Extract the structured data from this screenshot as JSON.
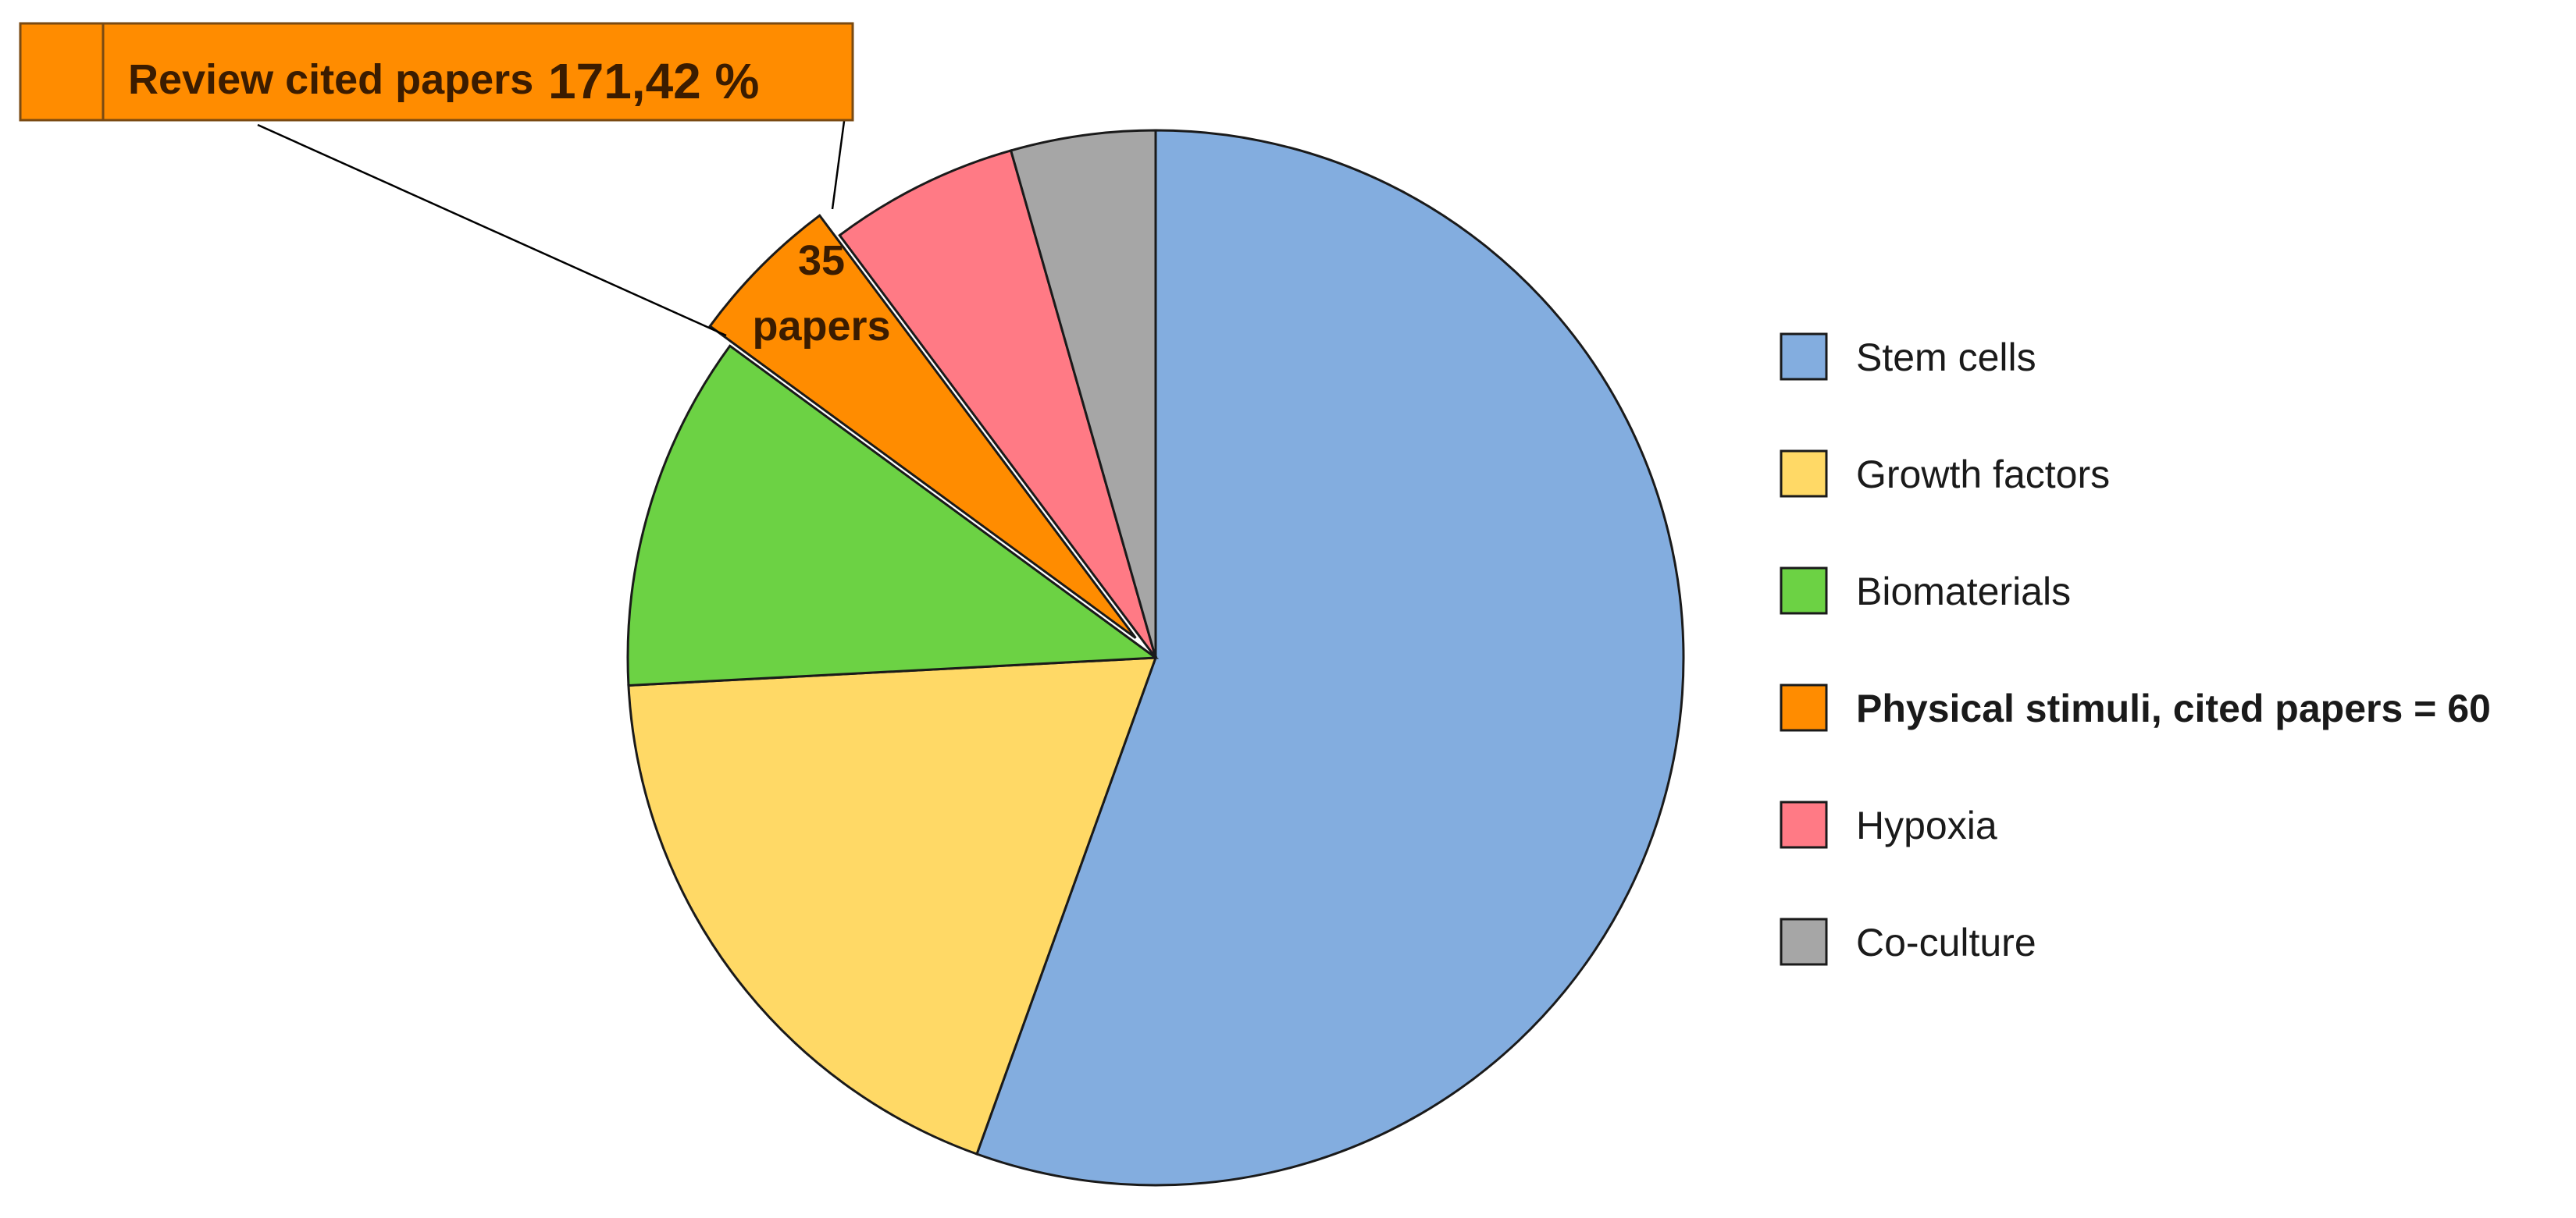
{
  "chart_data": {
    "type": "pie",
    "start_angle_deg": 90,
    "direction": "clockwise",
    "legend_position": "right",
    "slices": [
      {
        "label": "Stem cells",
        "value": 56.5,
        "color": "#83ADDF",
        "legend_bold": false
      },
      {
        "label": "Growth factors",
        "value": 19.0,
        "color": "#FFD966",
        "legend_bold": false
      },
      {
        "label": "Biomaterials",
        "value": 11.1,
        "color": "#6CD244",
        "legend_bold": false
      },
      {
        "label": "Physical stimuli, cited papers = 60",
        "value": 4.8,
        "color": "#FF8C00",
        "legend_bold": true,
        "exploded": true
      },
      {
        "label": "Hypoxia",
        "value": 5.9,
        "color": "#FF7A85",
        "legend_bold": false
      },
      {
        "label": "Co-culture",
        "value": 4.5,
        "color": "#A6A6A6",
        "legend_bold": false
      }
    ],
    "slice_label": {
      "slice_index": 3,
      "lines": [
        "35",
        "papers"
      ]
    },
    "callout": {
      "text": "Review cited papers",
      "value": "171,42 %",
      "color": "#FF8C00"
    }
  }
}
